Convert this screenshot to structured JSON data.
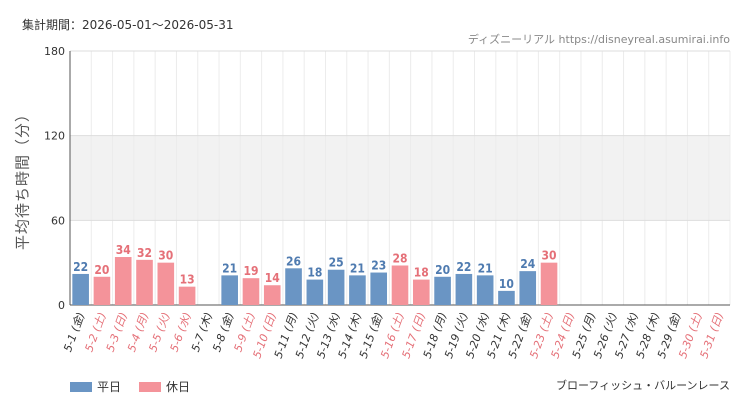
{
  "period_label": "集計期間：2026-05-01〜2026-05-31",
  "source": "ディズニーリアル https://disneyreal.asumirai.info",
  "attraction": "ブローフィッシュ・バルーンレース",
  "colors": {
    "weekday": "#6a95c4",
    "holiday": "#f4939a",
    "weekday_label": "#4f7bb0",
    "holiday_label": "#e57078",
    "band": "#f2f2f2"
  },
  "chart_data": {
    "type": "bar",
    "ylabel": "平均待ち時間（分）",
    "ylim": [
      0,
      180
    ],
    "yticks": [
      0,
      60,
      120,
      180
    ],
    "grid": true,
    "legend_position": "bottom-left",
    "categories": [
      "5-1 (金)",
      "5-2 (土)",
      "5-3 (日)",
      "5-4 (月)",
      "5-5 (火)",
      "5-6 (水)",
      "5-7 (木)",
      "5-8 (金)",
      "5-9 (土)",
      "5-10 (日)",
      "5-11 (月)",
      "5-12 (火)",
      "5-13 (水)",
      "5-14 (木)",
      "5-15 (金)",
      "5-16 (土)",
      "5-17 (日)",
      "5-18 (月)",
      "5-19 (火)",
      "5-20 (水)",
      "5-21 (木)",
      "5-22 (金)",
      "5-23 (土)",
      "5-24 (日)",
      "5-25 (月)",
      "5-26 (火)",
      "5-27 (水)",
      "5-28 (木)",
      "5-29 (金)",
      "5-30 (土)",
      "5-31 (日)"
    ],
    "day_type": [
      "weekday",
      "holiday",
      "holiday",
      "holiday",
      "holiday",
      "holiday",
      "weekday",
      "weekday",
      "holiday",
      "holiday",
      "weekday",
      "weekday",
      "weekday",
      "weekday",
      "weekday",
      "holiday",
      "holiday",
      "weekday",
      "weekday",
      "weekday",
      "weekday",
      "weekday",
      "holiday",
      "holiday",
      "weekday",
      "weekday",
      "weekday",
      "weekday",
      "weekday",
      "holiday",
      "holiday"
    ],
    "values": [
      22,
      20,
      34,
      32,
      30,
      13,
      null,
      21,
      19,
      14,
      26,
      18,
      25,
      21,
      23,
      28,
      18,
      20,
      22,
      21,
      10,
      24,
      30,
      null,
      null,
      null,
      null,
      null,
      null,
      null,
      null
    ],
    "series": [
      {
        "name": "平日",
        "key": "weekday"
      },
      {
        "name": "休日",
        "key": "holiday"
      }
    ]
  }
}
